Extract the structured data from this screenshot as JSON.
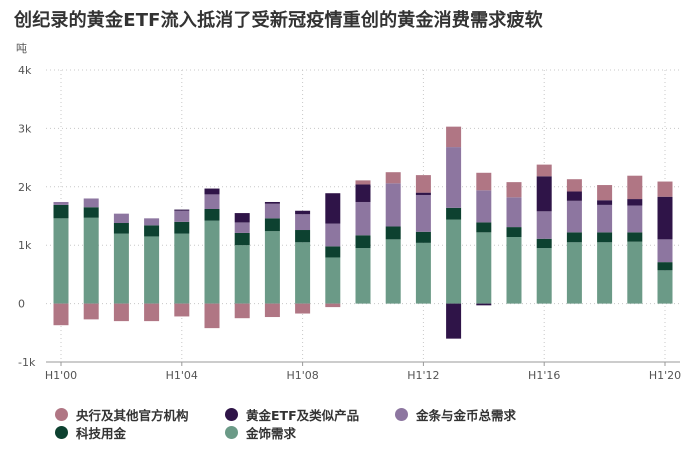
{
  "chart_data": {
    "type": "bar",
    "stacked": true,
    "title": "创纪录的黄金ETF流入抵消了受新冠疫情重创的黄金消费需求疲软",
    "ylabel": "吨",
    "ylim": [
      -1000,
      4000
    ],
    "yticks": [
      -1000,
      0,
      1000,
      2000,
      3000,
      4000
    ],
    "ytick_labels": [
      "-1k",
      "0",
      "1k",
      "2k",
      "3k",
      "4k"
    ],
    "categories": [
      "H1'00",
      "H1'01",
      "H1'02",
      "H1'03",
      "H1'04",
      "H1'05",
      "H1'06",
      "H1'07",
      "H1'08",
      "H1'09",
      "H1'10",
      "H1'11",
      "H1'12",
      "H1'13",
      "H1'14",
      "H1'15",
      "H1'16",
      "H1'17",
      "H1'18",
      "H1'19",
      "H1'20"
    ],
    "xtick_labels": [
      "H1'00",
      "H1'04",
      "H1'08",
      "H1'12",
      "H1'16",
      "H1'20"
    ],
    "grid": true,
    "legend_position": "bottom",
    "series": [
      {
        "name": "金饰需求",
        "color": "#6b9a87",
        "values": [
          1460,
          1470,
          1200,
          1150,
          1200,
          1420,
          1000,
          1240,
          1050,
          790,
          950,
          1100,
          1040,
          1440,
          1220,
          1140,
          950,
          1050,
          1050,
          1060,
          570
        ]
      },
      {
        "name": "科技用金",
        "color": "#0d4130",
        "values": [
          230,
          180,
          180,
          190,
          200,
          200,
          210,
          220,
          210,
          190,
          220,
          220,
          190,
          200,
          170,
          170,
          160,
          170,
          170,
          160,
          140
        ]
      },
      {
        "name": "金条与金币总需求",
        "color": "#8d76a0",
        "values": [
          50,
          150,
          160,
          120,
          190,
          250,
          180,
          250,
          270,
          390,
          570,
          740,
          630,
          1040,
          550,
          510,
          470,
          540,
          470,
          460,
          390
        ]
      },
      {
        "name": "黄金ETF及类似产品",
        "color": "#2f1448",
        "values": [
          0,
          0,
          0,
          0,
          20,
          100,
          160,
          30,
          60,
          520,
          300,
          0,
          40,
          -600,
          -30,
          0,
          600,
          160,
          80,
          110,
          730
        ]
      },
      {
        "name": "央行及其他官方机构",
        "color": "#b07684",
        "values": [
          -370,
          -270,
          -300,
          -300,
          -220,
          -420,
          -250,
          -230,
          -170,
          -60,
          70,
          190,
          300,
          350,
          300,
          260,
          200,
          210,
          260,
          400,
          260
        ]
      }
    ]
  },
  "legend": [
    {
      "label": "央行及其他官方机构",
      "color": "#b07684"
    },
    {
      "label": "黄金ETF及类似产品",
      "color": "#2f1448"
    },
    {
      "label": "金条与金币总需求",
      "color": "#8d76a0"
    },
    {
      "label": "科技用金",
      "color": "#0d4130"
    },
    {
      "label": "金饰需求",
      "color": "#6b9a87"
    }
  ]
}
